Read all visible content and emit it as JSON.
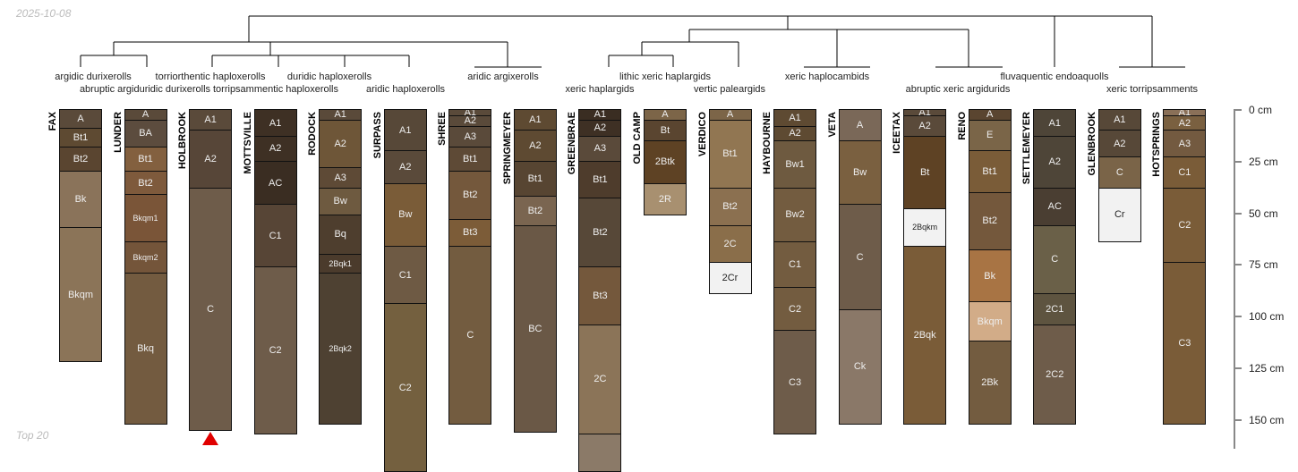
{
  "date": "2025-10-08",
  "footer": "Top 20",
  "taxa": [
    "argidic durixerolls",
    "abruptic argiduridic durixerolls",
    "torriorthentic haploxerolls",
    "torripsammentic haploxerolls",
    "duridic haploxerolls",
    "aridic haploxerolls",
    "aridic argixerolls",
    "lithic xeric haplargids",
    "xeric haplargids",
    "vertic paleargids",
    "xeric haplocambids",
    "abruptic xeric argidurids",
    "fluvaquentic endoaquolls",
    "xeric torripsamments"
  ],
  "axis": {
    "unit": "cm",
    "ticks": [
      "0 cm",
      "25 cm",
      "50 cm",
      "75 cm",
      "100 cm",
      "125 cm",
      "150 cm"
    ],
    "tick_values": [
      0,
      25,
      50,
      75,
      100,
      125,
      150
    ]
  },
  "profiles": [
    {
      "name": "FAX",
      "horizons": [
        [
          "A",
          0,
          9,
          "#5a4a3a"
        ],
        [
          "Bt1",
          9,
          18,
          "#5e4a32"
        ],
        [
          "Bt2",
          18,
          30,
          "#5a4530"
        ],
        [
          "Bk",
          30,
          57,
          "#8a735a"
        ],
        [
          "Bkqm",
          57,
          122,
          "#8b7458"
        ]
      ]
    },
    {
      "name": "LUNDER",
      "horizons": [
        [
          "A",
          0,
          5,
          "#5a4a3a"
        ],
        [
          "BA",
          5,
          18,
          "#5c4c3e"
        ],
        [
          "Bt1",
          18,
          30,
          "#83603f"
        ],
        [
          "Bt2",
          30,
          41,
          "#7e5a3c"
        ],
        [
          "Bkqm1",
          41,
          64,
          "#7a5538"
        ],
        [
          "Bkqm2",
          64,
          79,
          "#74553a"
        ],
        [
          "Bkq",
          79,
          152,
          "#735b40"
        ]
      ]
    },
    {
      "name": "HOLBROOK",
      "horizons": [
        [
          "A1",
          0,
          10,
          "#5a4a3a"
        ],
        [
          "A2",
          10,
          38,
          "#574638"
        ],
        [
          "C",
          38,
          155,
          "#6e5c4a"
        ]
      ],
      "marker": true
    },
    {
      "name": "MOTTSVILLE",
      "horizons": [
        [
          "A1",
          0,
          13,
          "#3e3024"
        ],
        [
          "A2",
          13,
          25,
          "#3e3024"
        ],
        [
          "AC",
          25,
          46,
          "#3a2d22"
        ],
        [
          "C1",
          46,
          76,
          "#574536"
        ],
        [
          "C2",
          76,
          157,
          "#6e5c4a"
        ]
      ]
    },
    {
      "name": "RODOCK",
      "horizons": [
        [
          "A1",
          0,
          5,
          "#5a4a3a"
        ],
        [
          "A2",
          5,
          28,
          "#6e5638"
        ],
        [
          "A3",
          28,
          38,
          "#5e4a36"
        ],
        [
          "Bw",
          38,
          51,
          "#6e5a40"
        ],
        [
          "Bq",
          51,
          70,
          "#4e3e2e"
        ],
        [
          "2Bqk1",
          70,
          79,
          "#4b3b2c"
        ],
        [
          "2Bqk2",
          79,
          152,
          "#4e4132"
        ]
      ]
    },
    {
      "name": "SURPASS",
      "horizons": [
        [
          "A1",
          0,
          20,
          "#574838"
        ],
        [
          "A2",
          20,
          36,
          "#5a4a3a"
        ],
        [
          "Bw",
          36,
          66,
          "#7a5c38"
        ],
        [
          "C1",
          66,
          94,
          "#6e5a44"
        ],
        [
          "C2",
          94,
          175,
          "#74603f"
        ]
      ]
    },
    {
      "name": "SHREE",
      "horizons": [
        [
          "A1",
          0,
          3,
          "#5a4a3a"
        ],
        [
          "A2",
          3,
          8,
          "#5a4a3a"
        ],
        [
          "A3",
          8,
          18,
          "#5a4a3a"
        ],
        [
          "Bt1",
          18,
          30,
          "#5e4a36"
        ],
        [
          "Bt2",
          30,
          53,
          "#74583c"
        ],
        [
          "Bt3",
          53,
          66,
          "#7c5c38"
        ],
        [
          "C",
          66,
          152,
          "#735c40"
        ]
      ]
    },
    {
      "name": "SPRINGMEYER",
      "horizons": [
        [
          "A1",
          0,
          10,
          "#5e4a32"
        ],
        [
          "A2",
          10,
          25,
          "#5e4a32"
        ],
        [
          "Bt1",
          25,
          42,
          "#574532"
        ],
        [
          "Bt2",
          42,
          56,
          "#7a6550"
        ],
        [
          "BC",
          56,
          156,
          "#6a5846"
        ]
      ]
    },
    {
      "name": "GREENBRAE",
      "horizons": [
        [
          "A1",
          0,
          5,
          "#3a2d22"
        ],
        [
          "A2",
          5,
          13,
          "#3e3024"
        ],
        [
          "A3",
          13,
          25,
          "#5a4a3a"
        ],
        [
          "Bt1",
          25,
          43,
          "#4e3c2c"
        ],
        [
          "Bt2",
          43,
          76,
          "#574838"
        ],
        [
          "Bt3",
          76,
          104,
          "#74583c"
        ],
        [
          "2C",
          104,
          157,
          "#8b7458"
        ],
        [
          "",
          157,
          175,
          "#8b7a68"
        ]
      ]
    },
    {
      "name": "OLD CAMP",
      "horizons": [
        [
          "A",
          0,
          5,
          "#7c6548"
        ],
        [
          "Bt",
          5,
          15,
          "#5a4530"
        ],
        [
          "2Btk",
          15,
          36,
          "#5e4224"
        ],
        [
          "2R",
          36,
          51,
          "#a89070"
        ]
      ]
    },
    {
      "name": "VERDICO",
      "horizons": [
        [
          "A",
          0,
          5,
          "#7c6548"
        ],
        [
          "Bt1",
          5,
          38,
          "#917652"
        ],
        [
          "Bt2",
          38,
          56,
          "#8b7050"
        ],
        [
          "2C",
          56,
          74,
          "#8a6e4a"
        ],
        [
          "2Cr",
          74,
          89,
          "#f2f2f2"
        ]
      ]
    },
    {
      "name": "HAYBOURNE",
      "horizons": [
        [
          "A1",
          0,
          8,
          "#5e4a32"
        ],
        [
          "A2",
          8,
          15,
          "#5e4a32"
        ],
        [
          "Bw1",
          15,
          38,
          "#6e5a40"
        ],
        [
          "Bw2",
          38,
          64,
          "#735c40"
        ],
        [
          "C1",
          64,
          86,
          "#735c40"
        ],
        [
          "C2",
          86,
          107,
          "#735c40"
        ],
        [
          "C3",
          107,
          157,
          "#6e5c4a"
        ]
      ]
    },
    {
      "name": "VETA",
      "horizons": [
        [
          "A",
          0,
          15,
          "#7a6858"
        ],
        [
          "Bw",
          15,
          46,
          "#7a6040"
        ],
        [
          "C",
          46,
          97,
          "#6e5c4a"
        ],
        [
          "Ck",
          97,
          152,
          "#8a7868"
        ]
      ]
    },
    {
      "name": "ICEETAX",
      "horizons": [
        [
          "A1",
          0,
          3,
          "#5a4a3a"
        ],
        [
          "A2",
          3,
          13,
          "#5a4a3a"
        ],
        [
          "Bt",
          13,
          48,
          "#5e4224"
        ],
        [
          "2Bqkm",
          48,
          66,
          "#f2f2f2"
        ],
        [
          "2Bqk",
          66,
          152,
          "#7a5c38"
        ]
      ]
    },
    {
      "name": "RENO",
      "horizons": [
        [
          "A",
          0,
          5,
          "#5a4530"
        ],
        [
          "E",
          5,
          20,
          "#7a6548"
        ],
        [
          "Bt1",
          20,
          40,
          "#7a5c38"
        ],
        [
          "Bt2",
          40,
          68,
          "#74583c"
        ],
        [
          "Bk",
          68,
          93,
          "#a87444"
        ],
        [
          "Bkqm",
          93,
          112,
          "#d2ac88"
        ],
        [
          "2Bk",
          112,
          152,
          "#735c40"
        ]
      ]
    },
    {
      "name": "SETTLEMEYER",
      "horizons": [
        [
          "A1",
          0,
          13,
          "#4e4538"
        ],
        [
          "A2",
          13,
          38,
          "#4e4538"
        ],
        [
          "AC",
          38,
          56,
          "#4a3e32"
        ],
        [
          "C",
          56,
          89,
          "#6a6048"
        ],
        [
          "2C1",
          89,
          104,
          "#5e5440"
        ],
        [
          "2C2",
          104,
          152,
          "#6e5c4a"
        ]
      ]
    },
    {
      "name": "GLENBROOK",
      "horizons": [
        [
          "A1",
          0,
          10,
          "#574838"
        ],
        [
          "A2",
          10,
          23,
          "#574838"
        ],
        [
          "C",
          23,
          38,
          "#7a6448"
        ],
        [
          "Cr",
          38,
          64,
          "#f2f2f2"
        ]
      ]
    },
    {
      "name": "HOTSPRINGS",
      "horizons": [
        [
          "A1",
          0,
          3,
          "#8a7058"
        ],
        [
          "A2",
          3,
          10,
          "#7a6040"
        ],
        [
          "A3",
          10,
          23,
          "#735a40"
        ],
        [
          "C1",
          23,
          38,
          "#7a5c38"
        ],
        [
          "C2",
          38,
          74,
          "#7a5c38"
        ],
        [
          "C3",
          74,
          152,
          "#7a5c38"
        ]
      ]
    }
  ]
}
